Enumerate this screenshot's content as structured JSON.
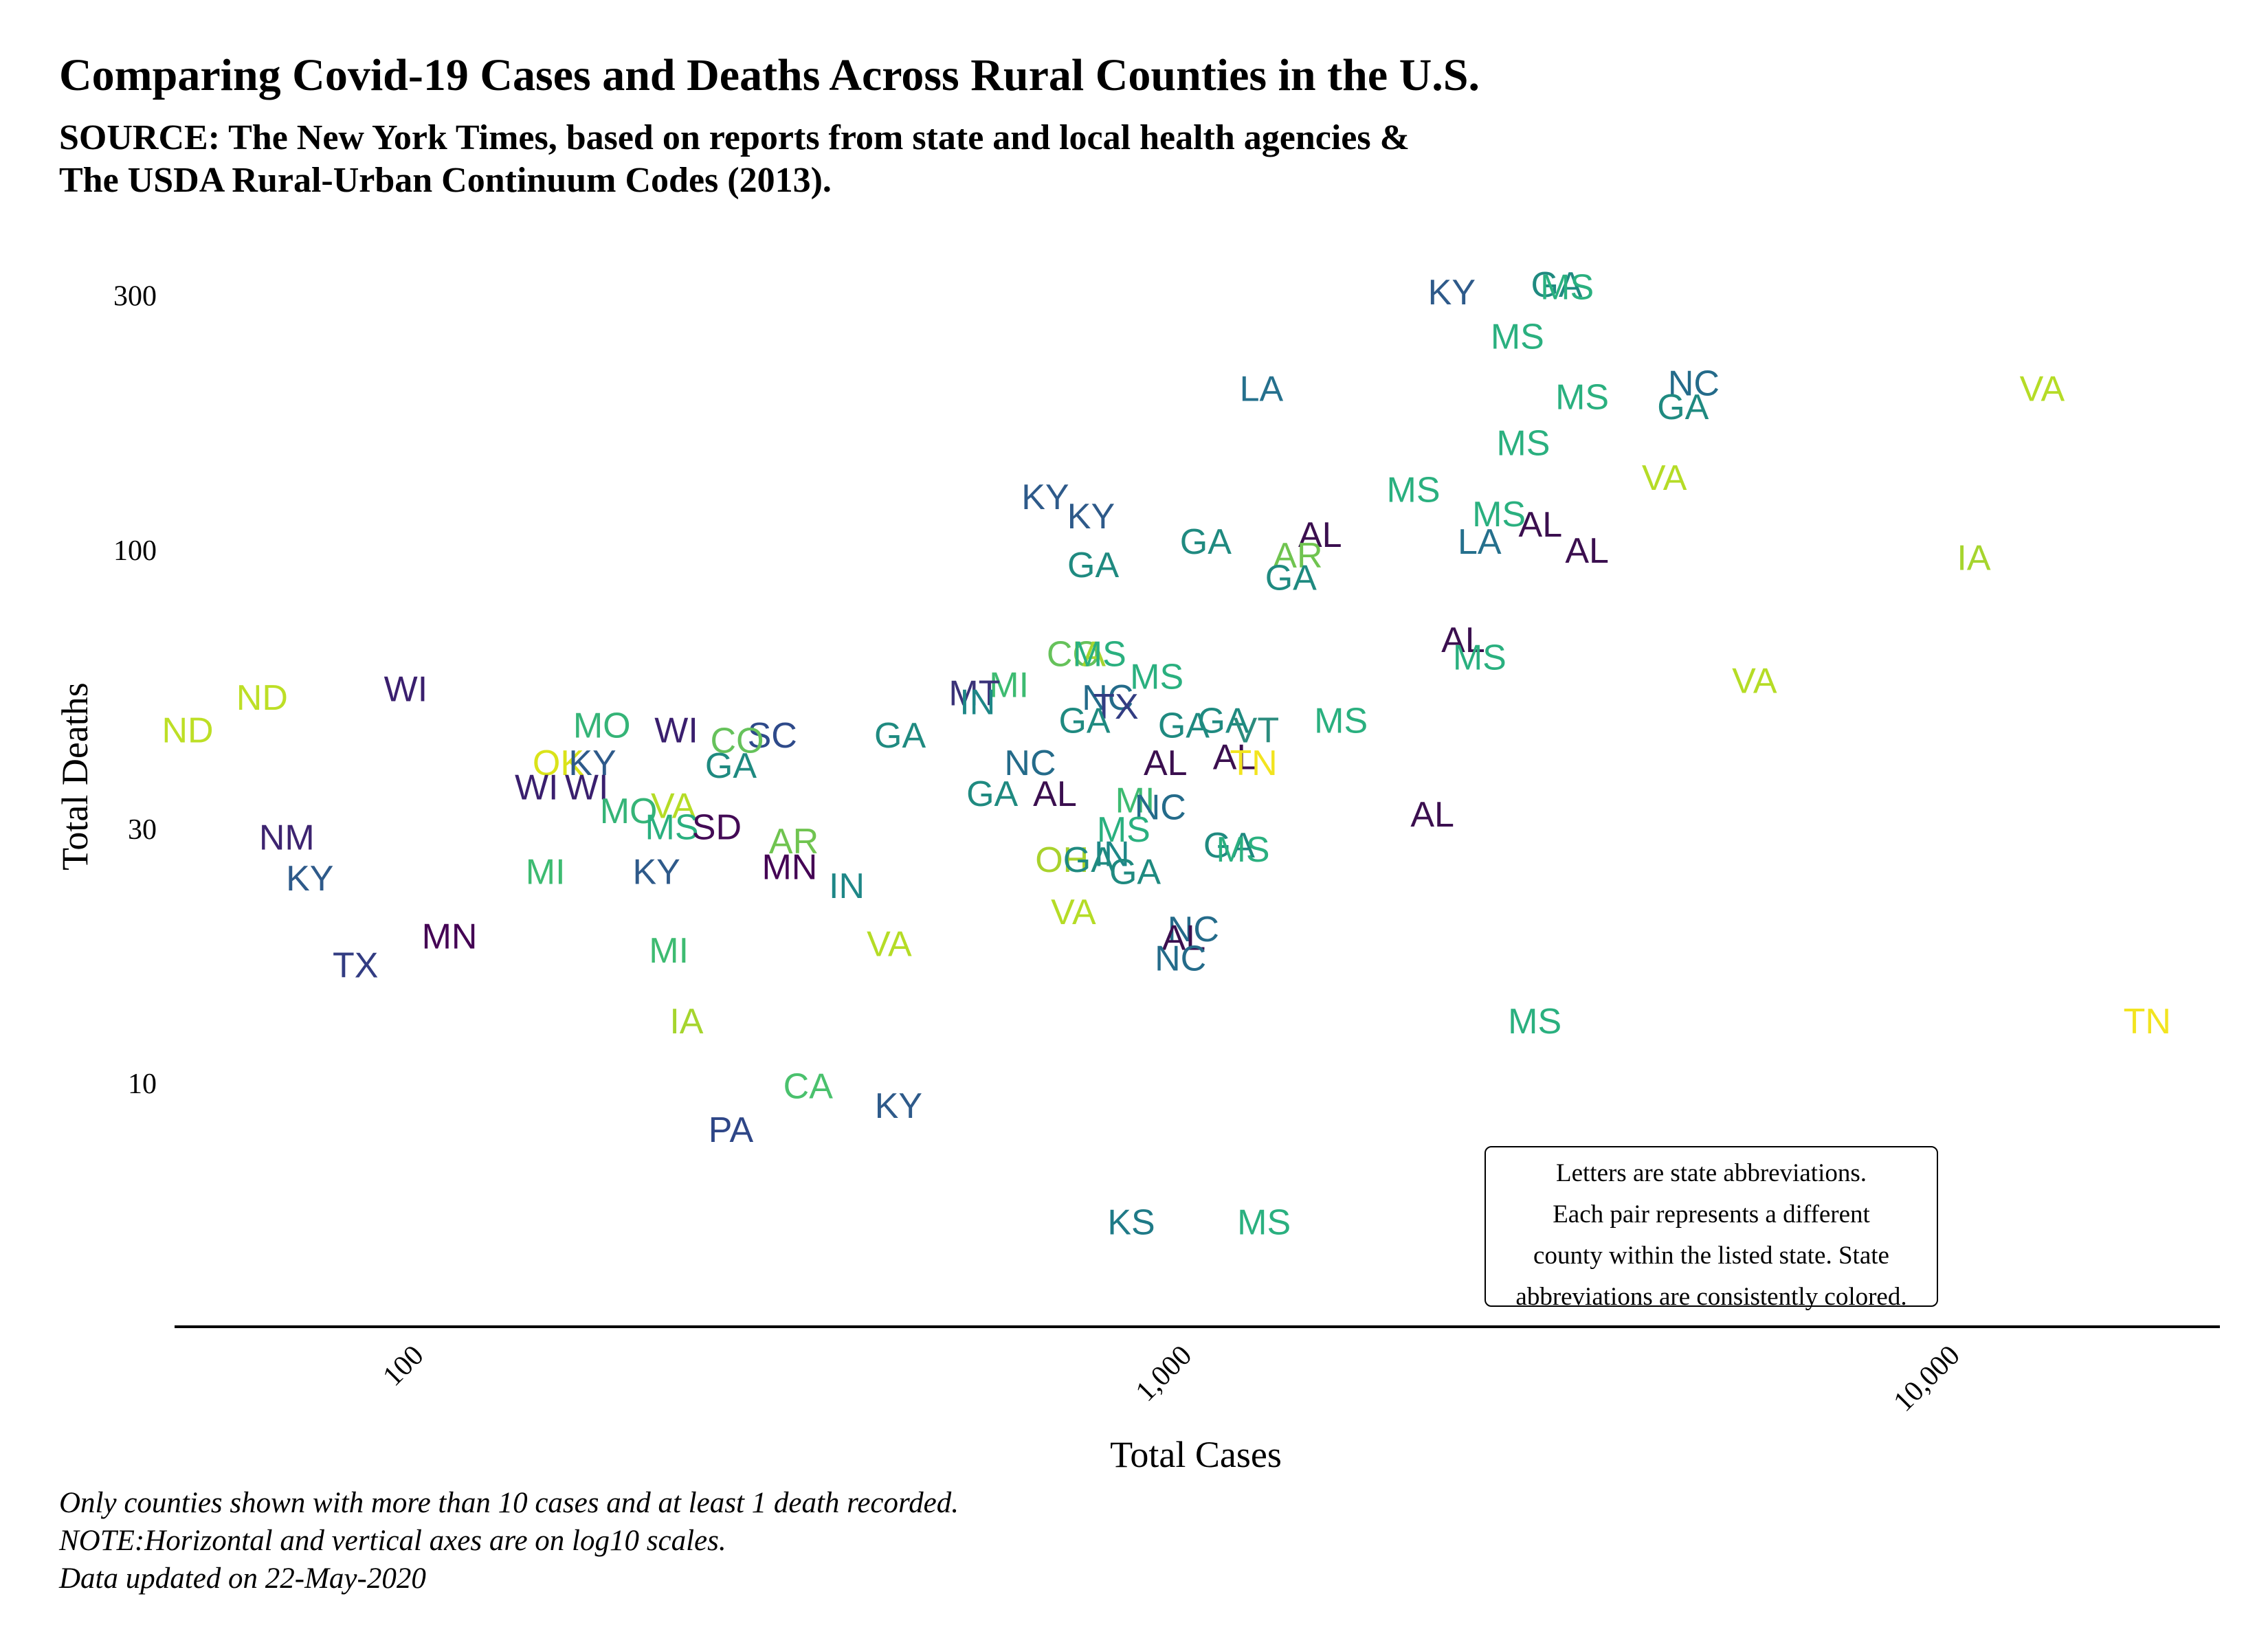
{
  "header": {
    "title": "Comparing Covid-19 Cases and Deaths Across Rural Counties in the U.S.",
    "subtitle_line1": "SOURCE: The New York Times, based on reports from state and local health agencies &",
    "subtitle_line2": "The USDA Rural-Urban Continuum Codes (2013)."
  },
  "note": {
    "line1": "Letters are state abbreviations.",
    "line2": "Each pair represents a different",
    "line3": "county within the listed state. State",
    "line4": "abbreviations are consistently colored."
  },
  "caption": {
    "line1": "Only counties shown with more than 10 cases and at least 1 death recorded.",
    "line2": "NOTE:Horizontal and vertical axes are on log10 scales.",
    "line3": "Data updated on 22-May-2020"
  },
  "chart_data": {
    "type": "scatter",
    "title": "Comparing Covid-19 Cases and Deaths Across Rural Counties in the U.S.",
    "subtitle": "SOURCE: The New York Times, based on reports from state and local health agencies & The USDA Rural-Urban Continuum Codes (2013).",
    "xlabel": "Total Cases",
    "ylabel": "Total Deaths",
    "x_scale": "log10",
    "y_scale": "log10",
    "xlim": [
      50,
      23000
    ],
    "ylim": [
      3.5,
      370
    ],
    "x_ticks": [
      {
        "value": 100,
        "label": "100"
      },
      {
        "value": 1000,
        "label": "1,000"
      },
      {
        "value": 10000,
        "label": "10,000"
      }
    ],
    "y_ticks": [
      {
        "value": 10,
        "label": "10"
      },
      {
        "value": 30,
        "label": "30"
      },
      {
        "value": 100,
        "label": "100"
      },
      {
        "value": 300,
        "label": "300"
      }
    ],
    "grid": false,
    "state_colors": {
      "AL": "#3b0f4f",
      "MN": "#440154",
      "SD": "#430a55",
      "WI": "#3a1f6e",
      "NM": "#3d2470",
      "MT": "#3a3278",
      "TX": "#323c82",
      "PA": "#2e4687",
      "KY": "#2e5a8a",
      "NC": "#246b8a",
      "LA": "#25708d",
      "KS": "#1f7a87",
      "IN": "#1e8787",
      "GA": "#1f8a80",
      "MS": "#2ab07f",
      "MO": "#35b477",
      "MI": "#3dbb71",
      "CA": "#4ac16d",
      "CO": "#66c25b",
      "AR": "#70c450",
      "SC": "#2e4a8a",
      "OH": "#a9d22c",
      "IA": "#a6d52e",
      "VA": "#b5dc26",
      "ND": "#bddf26",
      "OK": "#dae319",
      "VT": "#2b8c7e",
      "TN": "#f2e41f"
    },
    "points": [
      {
        "state": "GA",
        "x": 3150,
        "y": 315
      },
      {
        "state": "MS",
        "x": 3250,
        "y": 312
      },
      {
        "state": "KY",
        "x": 2300,
        "y": 305
      },
      {
        "state": "MS",
        "x": 2800,
        "y": 252
      },
      {
        "state": "NC",
        "x": 4750,
        "y": 206
      },
      {
        "state": "MS",
        "x": 3400,
        "y": 194
      },
      {
        "state": "GA",
        "x": 4600,
        "y": 186
      },
      {
        "state": "LA",
        "x": 1300,
        "y": 201
      },
      {
        "state": "VA",
        "x": 13500,
        "y": 201
      },
      {
        "state": "MS",
        "x": 2850,
        "y": 159
      },
      {
        "state": "VA",
        "x": 4350,
        "y": 137
      },
      {
        "state": "MS",
        "x": 2050,
        "y": 130
      },
      {
        "state": "MS",
        "x": 2650,
        "y": 117
      },
      {
        "state": "AL",
        "x": 3000,
        "y": 112
      },
      {
        "state": "AL",
        "x": 3450,
        "y": 100
      },
      {
        "state": "LA",
        "x": 2500,
        "y": 104
      },
      {
        "state": "AL",
        "x": 1550,
        "y": 107
      },
      {
        "state": "KY",
        "x": 680,
        "y": 126
      },
      {
        "state": "KY",
        "x": 780,
        "y": 116
      },
      {
        "state": "GA",
        "x": 1100,
        "y": 104
      },
      {
        "state": "AR",
        "x": 1450,
        "y": 98
      },
      {
        "state": "GA",
        "x": 1420,
        "y": 89
      },
      {
        "state": "GA",
        "x": 785,
        "y": 94
      },
      {
        "state": "IA",
        "x": 11000,
        "y": 97
      },
      {
        "state": "AL",
        "x": 2380,
        "y": 68
      },
      {
        "state": "MS",
        "x": 2500,
        "y": 63
      },
      {
        "state": "VA",
        "x": 5700,
        "y": 57
      },
      {
        "state": "CO",
        "x": 740,
        "y": 64
      },
      {
        "state": "IA",
        "x": 775,
        "y": 64
      },
      {
        "state": "MS",
        "x": 800,
        "y": 64
      },
      {
        "state": "MS",
        "x": 950,
        "y": 58
      },
      {
        "state": "NC",
        "x": 820,
        "y": 53
      },
      {
        "state": "TX",
        "x": 840,
        "y": 51
      },
      {
        "state": "GA",
        "x": 765,
        "y": 48
      },
      {
        "state": "GA",
        "x": 1030,
        "y": 47
      },
      {
        "state": "GA",
        "x": 1160,
        "y": 48
      },
      {
        "state": "VT",
        "x": 1280,
        "y": 46
      },
      {
        "state": "MS",
        "x": 1650,
        "y": 48
      },
      {
        "state": "MI",
        "x": 610,
        "y": 56
      },
      {
        "state": "MT",
        "x": 550,
        "y": 54
      },
      {
        "state": "IN",
        "x": 555,
        "y": 52
      },
      {
        "state": "GA",
        "x": 440,
        "y": 45
      },
      {
        "state": "NC",
        "x": 650,
        "y": 40
      },
      {
        "state": "AL",
        "x": 975,
        "y": 40
      },
      {
        "state": "AL",
        "x": 1200,
        "y": 41
      },
      {
        "state": "TN",
        "x": 1270,
        "y": 40
      },
      {
        "state": "AL",
        "x": 700,
        "y": 35
      },
      {
        "state": "GA",
        "x": 580,
        "y": 35
      },
      {
        "state": "MI",
        "x": 890,
        "y": 34
      },
      {
        "state": "NC",
        "x": 960,
        "y": 33
      },
      {
        "state": "AL",
        "x": 2170,
        "y": 32
      },
      {
        "state": "MS",
        "x": 860,
        "y": 30
      },
      {
        "state": "GA",
        "x": 1180,
        "y": 28
      },
      {
        "state": "MS",
        "x": 1230,
        "y": 27.5
      },
      {
        "state": "IN",
        "x": 830,
        "y": 27
      },
      {
        "state": "OH",
        "x": 715,
        "y": 26.3
      },
      {
        "state": "GA",
        "x": 775,
        "y": 26.3
      },
      {
        "state": "GA",
        "x": 890,
        "y": 25
      },
      {
        "state": "VA",
        "x": 740,
        "y": 21
      },
      {
        "state": "NC",
        "x": 1060,
        "y": 19.5
      },
      {
        "state": "AL",
        "x": 1030,
        "y": 18.8
      },
      {
        "state": "NC",
        "x": 1020,
        "y": 17.2
      },
      {
        "state": "MO",
        "x": 180,
        "y": 47
      },
      {
        "state": "WI",
        "x": 225,
        "y": 46
      },
      {
        "state": "SC",
        "x": 300,
        "y": 45
      },
      {
        "state": "WI",
        "x": 100,
        "y": 55
      },
      {
        "state": "ND",
        "x": 65,
        "y": 53
      },
      {
        "state": "ND",
        "x": 52,
        "y": 46
      },
      {
        "state": "CO",
        "x": 270,
        "y": 44
      },
      {
        "state": "OK",
        "x": 158,
        "y": 40
      },
      {
        "state": "KY",
        "x": 175,
        "y": 40
      },
      {
        "state": "GA",
        "x": 265,
        "y": 39.5
      },
      {
        "state": "WI",
        "x": 148,
        "y": 36
      },
      {
        "state": "WI",
        "x": 172,
        "y": 36
      },
      {
        "state": "VA",
        "x": 223,
        "y": 33.2
      },
      {
        "state": "MO",
        "x": 195,
        "y": 32.5
      },
      {
        "state": "MS",
        "x": 222,
        "y": 30.3
      },
      {
        "state": "SD",
        "x": 254,
        "y": 30.3
      },
      {
        "state": "NM",
        "x": 70,
        "y": 29
      },
      {
        "state": "AR",
        "x": 320,
        "y": 28.5
      },
      {
        "state": "MN",
        "x": 316,
        "y": 25.5
      },
      {
        "state": "MI",
        "x": 152,
        "y": 25
      },
      {
        "state": "KY",
        "x": 212,
        "y": 25
      },
      {
        "state": "IN",
        "x": 375,
        "y": 23.5
      },
      {
        "state": "KY",
        "x": 75,
        "y": 24.3
      },
      {
        "state": "MN",
        "x": 114,
        "y": 18.9
      },
      {
        "state": "VA",
        "x": 426,
        "y": 18.3
      },
      {
        "state": "MI",
        "x": 220,
        "y": 17.8
      },
      {
        "state": "TX",
        "x": 86,
        "y": 16.7
      },
      {
        "state": "IA",
        "x": 232,
        "y": 13.1
      },
      {
        "state": "MS",
        "x": 2950,
        "y": 13.1
      },
      {
        "state": "TN",
        "x": 18500,
        "y": 13.1
      },
      {
        "state": "CA",
        "x": 334,
        "y": 9.9
      },
      {
        "state": "KY",
        "x": 438,
        "y": 9.1
      },
      {
        "state": "PA",
        "x": 265,
        "y": 8.2
      },
      {
        "state": "KS",
        "x": 880,
        "y": 5.5
      },
      {
        "state": "MS",
        "x": 1310,
        "y": 5.5
      }
    ]
  }
}
